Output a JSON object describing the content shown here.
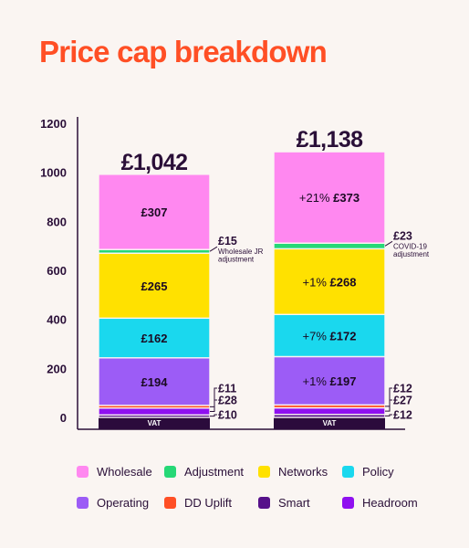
{
  "title": "Price cap breakdown",
  "chart_data": {
    "type": "bar",
    "stacked": true,
    "ylim": [
      0,
      1200
    ],
    "yticks": [
      0,
      200,
      400,
      600,
      800,
      1000,
      1200
    ],
    "grid": false,
    "legend_position": "bottom",
    "bars": [
      {
        "total_label": "£1,042",
        "segments": [
          {
            "category": "Smart",
            "value": 10,
            "label": "£10",
            "callout": true
          },
          {
            "category": "Headroom",
            "value": 28,
            "label": "£28",
            "callout": true
          },
          {
            "category": "DD Uplift",
            "value": 11,
            "label": "£11",
            "callout": true
          },
          {
            "category": "Operating",
            "value": 194,
            "label": "£194",
            "change": ""
          },
          {
            "category": "Policy",
            "value": 162,
            "label": "£162",
            "change": ""
          },
          {
            "category": "Networks",
            "value": 265,
            "label": "£265",
            "change": ""
          },
          {
            "category": "Adjustment",
            "value": 15,
            "label": "£15",
            "callout": true,
            "note": [
              "Wholesale JR",
              "adjustment"
            ]
          },
          {
            "category": "Wholesale",
            "value": 307,
            "label": "£307",
            "change": ""
          }
        ]
      },
      {
        "total_label": "£1,138",
        "segments": [
          {
            "category": "Smart",
            "value": 12,
            "label": "£12",
            "callout": true
          },
          {
            "category": "Headroom",
            "value": 27,
            "label": "£27",
            "callout": true
          },
          {
            "category": "DD Uplift",
            "value": 12,
            "label": "£12",
            "callout": true
          },
          {
            "category": "Operating",
            "value": 197,
            "label": "£197",
            "change": "+1%"
          },
          {
            "category": "Policy",
            "value": 172,
            "label": "£172",
            "change": "+7%"
          },
          {
            "category": "Networks",
            "value": 268,
            "label": "£268",
            "change": "+1%"
          },
          {
            "category": "Adjustment",
            "value": 23,
            "label": "£23",
            "callout": true,
            "note": [
              "COVID-19",
              "adjustment"
            ]
          },
          {
            "category": "Wholesale",
            "value": 373,
            "label": "£373",
            "change": "+21%"
          }
        ]
      }
    ],
    "vat_label": "VAT",
    "legend": [
      {
        "name": "Wholesale",
        "color": "#ff88f0"
      },
      {
        "name": "Adjustment",
        "color": "#26d876"
      },
      {
        "name": "Networks",
        "color": "#ffe100"
      },
      {
        "name": "Policy",
        "color": "#1ad8ee"
      },
      {
        "name": "Operating",
        "color": "#9c5cf6"
      },
      {
        "name": "DD Uplift",
        "color": "#ff4f25"
      },
      {
        "name": "Smart",
        "color": "#56118a"
      },
      {
        "name": "Headroom",
        "color": "#8f10f0"
      }
    ],
    "vat_color": "#2b0b3c"
  }
}
